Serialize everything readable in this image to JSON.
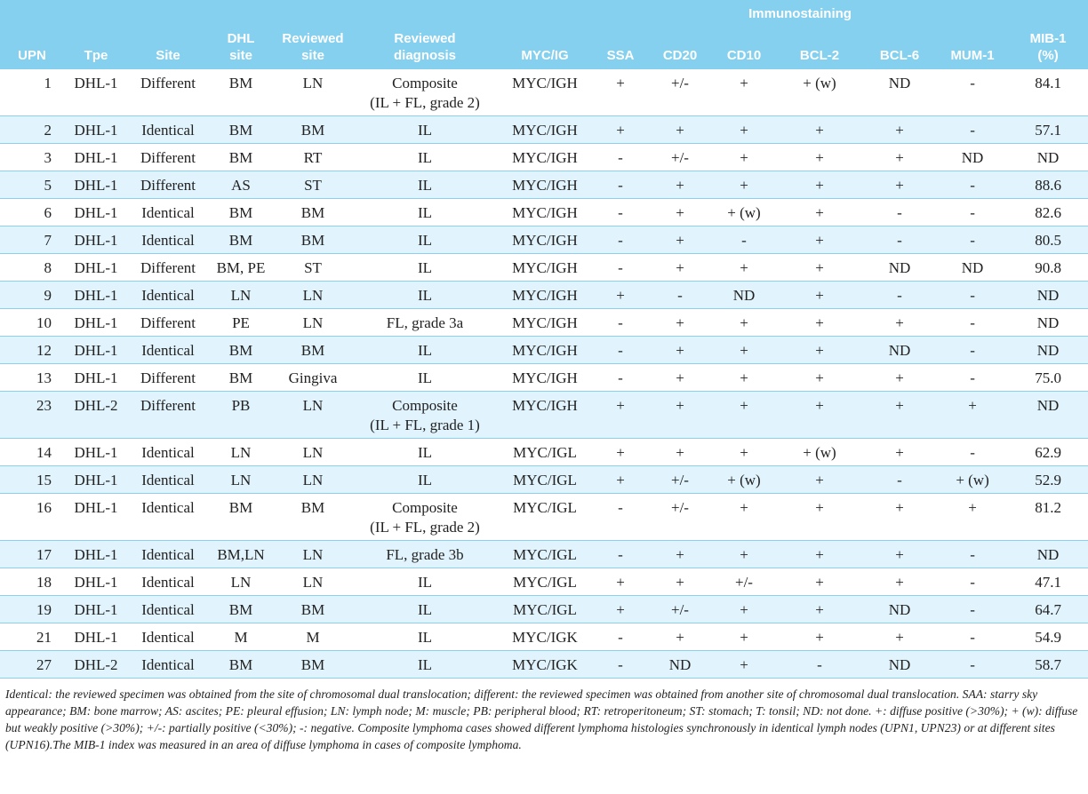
{
  "header": {
    "group": "Immunostaining",
    "columns": [
      "UPN",
      "Tpe",
      "Site",
      "DHL\nsite",
      "Reviewed\nsite",
      "Reviewed\ndiagnosis",
      "MYC/IG",
      "SSA",
      "CD20",
      "CD10",
      "BCL-2",
      "BCL-6",
      "MUM-1",
      "MIB-1\n(%)"
    ]
  },
  "table": {
    "rows": [
      [
        "1",
        "DHL-1",
        "Different",
        "BM",
        "LN",
        "Composite\n(IL + FL, grade 2)",
        "MYC/IGH",
        "+",
        "+/-",
        "+",
        "+ (w)",
        "ND",
        "-",
        "84.1"
      ],
      [
        "2",
        "DHL-1",
        "Identical",
        "BM",
        "BM",
        "IL",
        "MYC/IGH",
        "+",
        "+",
        "+",
        "+",
        "+",
        "-",
        "57.1"
      ],
      [
        "3",
        "DHL-1",
        "Different",
        "BM",
        "RT",
        "IL",
        "MYC/IGH",
        "-",
        "+/-",
        "+",
        "+",
        "+",
        "ND",
        "ND"
      ],
      [
        "5",
        "DHL-1",
        "Different",
        "AS",
        "ST",
        "IL",
        "MYC/IGH",
        "-",
        "+",
        "+",
        "+",
        "+",
        "-",
        "88.6"
      ],
      [
        "6",
        "DHL-1",
        "Identical",
        "BM",
        "BM",
        "IL",
        "MYC/IGH",
        "-",
        "+",
        "+ (w)",
        "+",
        "-",
        "-",
        "82.6"
      ],
      [
        "7",
        "DHL-1",
        "Identical",
        "BM",
        "BM",
        "IL",
        "MYC/IGH",
        "-",
        "+",
        "-",
        "+",
        "-",
        "-",
        "80.5"
      ],
      [
        "8",
        "DHL-1",
        "Different",
        "BM, PE",
        "ST",
        "IL",
        "MYC/IGH",
        "-",
        "+",
        "+",
        "+",
        "ND",
        "ND",
        "90.8"
      ],
      [
        "9",
        "DHL-1",
        "Identical",
        "LN",
        "LN",
        "IL",
        "MYC/IGH",
        "+",
        "-",
        "ND",
        "+",
        "-",
        "-",
        "ND"
      ],
      [
        "10",
        "DHL-1",
        "Different",
        "PE",
        "LN",
        "FL, grade 3a",
        "MYC/IGH",
        "-",
        "+",
        "+",
        "+",
        "+",
        "-",
        "ND"
      ],
      [
        "12",
        "DHL-1",
        "Identical",
        "BM",
        "BM",
        "IL",
        "MYC/IGH",
        "-",
        "+",
        "+",
        "+",
        "ND",
        "-",
        "ND"
      ],
      [
        "13",
        "DHL-1",
        "Different",
        "BM",
        "Gingiva",
        "IL",
        "MYC/IGH",
        "-",
        "+",
        "+",
        "+",
        "+",
        "-",
        "75.0"
      ],
      [
        "23",
        "DHL-2",
        "Different",
        "PB",
        "LN",
        "Composite\n(IL + FL, grade 1)",
        "MYC/IGH",
        "+",
        "+",
        "+",
        "+",
        "+",
        "+",
        "ND"
      ],
      [
        "14",
        "DHL-1",
        "Identical",
        "LN",
        "LN",
        "IL",
        "MYC/IGL",
        "+",
        "+",
        "+",
        "+ (w)",
        "+",
        "-",
        "62.9"
      ],
      [
        "15",
        "DHL-1",
        "Identical",
        "LN",
        "LN",
        "IL",
        "MYC/IGL",
        "+",
        "+/-",
        "+ (w)",
        "+",
        "-",
        "+ (w)",
        "52.9"
      ],
      [
        "16",
        "DHL-1",
        "Identical",
        "BM",
        "BM",
        "Composite\n(IL + FL, grade 2)",
        "MYC/IGL",
        "-",
        "+/-",
        "+",
        "+",
        "+",
        "+",
        "81.2"
      ],
      [
        "17",
        "DHL-1",
        "Identical",
        "BM,LN",
        "LN",
        "FL, grade 3b",
        "MYC/IGL",
        "-",
        "+",
        "+",
        "+",
        "+",
        "-",
        "ND"
      ],
      [
        "18",
        "DHL-1",
        "Identical",
        "LN",
        "LN",
        "IL",
        "MYC/IGL",
        "+",
        "+",
        "+/-",
        "+",
        "+",
        "-",
        "47.1"
      ],
      [
        "19",
        "DHL-1",
        "Identical",
        "BM",
        "BM",
        "IL",
        "MYC/IGL",
        "+",
        "+/-",
        "+",
        "+",
        "ND",
        "-",
        "64.7"
      ],
      [
        "21",
        "DHL-1",
        "Identical",
        "M",
        "M",
        "IL",
        "MYC/IGK",
        "-",
        "+",
        "+",
        "+",
        "+",
        "-",
        "54.9"
      ],
      [
        "27",
        "DHL-2",
        "Identical",
        "BM",
        "BM",
        "IL",
        "MYC/IGK",
        "-",
        "ND",
        "+",
        "-",
        "ND",
        "-",
        "58.7"
      ]
    ]
  },
  "footnote": "Identical: the reviewed specimen was obtained from the site of chromosomal dual translocation; different: the reviewed specimen was obtained from another site of chromosomal dual translocation. SAA: starry sky appearance; BM: bone marrow; AS: ascites; PE: pleural effusion; LN: lymph node; M: muscle; PB: peripheral blood; RT: retroperitoneum; ST: stomach; T: tonsil; ND: not done. +: diffuse positive (>30%); + (w): diffuse but weakly positive (>30%); +/-: partially positive (<30%); -: negative. Composite lymphoma cases showed different lymphoma histologies synchronously in identical lymph nodes (UPN1, UPN23) or at different sites (UPN16).The MIB-1 index was measured in an area of diffuse lymphoma in cases of composite lymphoma."
}
